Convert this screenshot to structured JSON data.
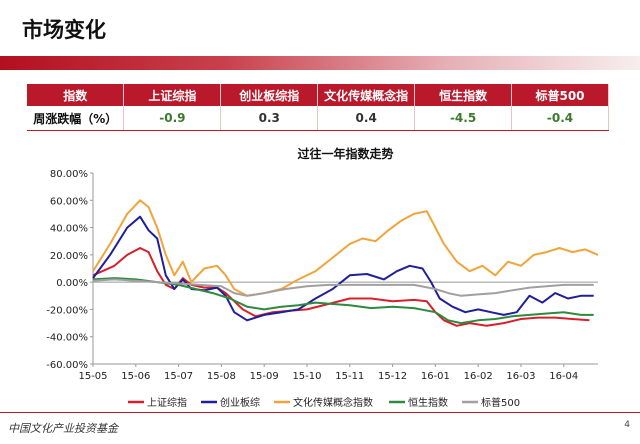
{
  "page_title": "市场变化",
  "summary_table": {
    "headers": [
      "指数",
      "上证综指",
      "创业板综指",
      "文化传媒概念指",
      "恒生指数",
      "标普500"
    ],
    "row_label": "周涨跌幅（%）",
    "values": [
      "-0.9",
      "0.3",
      "0.4",
      "-4.5",
      "-0.4"
    ]
  },
  "footer": {
    "logo_text": "中国文化产业投资基金",
    "page_number": "4"
  },
  "chart_data": {
    "type": "line",
    "title": "过往一年指数走势",
    "y_ticks": [
      "80.00%",
      "60.00%",
      "40.00%",
      "20.00%",
      "0.00%",
      "-20.00%",
      "-40.00%",
      "-60.00%"
    ],
    "ylim": [
      -60,
      80
    ],
    "x_ticks": [
      "15-05",
      "15-06",
      "15-07",
      "15-08",
      "15-09",
      "15-10",
      "15-11",
      "15-12",
      "16-01",
      "16-02",
      "16-03",
      "16-04"
    ],
    "grid": false,
    "legend_position": "bottom",
    "series": [
      {
        "name": "上证综指",
        "color": "#d7202b",
        "points": [
          [
            0,
            5
          ],
          [
            0.5,
            12
          ],
          [
            0.8,
            20
          ],
          [
            1.1,
            25
          ],
          [
            1.3,
            22
          ],
          [
            1.5,
            8
          ],
          [
            1.7,
            -2
          ],
          [
            1.9,
            -5
          ],
          [
            2.1,
            3
          ],
          [
            2.3,
            -2
          ],
          [
            2.6,
            -4
          ],
          [
            2.9,
            -4
          ],
          [
            3.1,
            -8
          ],
          [
            3.3,
            -14
          ],
          [
            3.5,
            -20
          ],
          [
            3.8,
            -25
          ],
          [
            4.2,
            -22
          ],
          [
            4.6,
            -21
          ],
          [
            5.0,
            -20
          ],
          [
            5.5,
            -16
          ],
          [
            6.0,
            -12
          ],
          [
            6.5,
            -12
          ],
          [
            7.0,
            -14
          ],
          [
            7.5,
            -13
          ],
          [
            7.8,
            -14
          ],
          [
            8.0,
            -22
          ],
          [
            8.2,
            -28
          ],
          [
            8.5,
            -32
          ],
          [
            8.8,
            -30
          ],
          [
            9.2,
            -32
          ],
          [
            9.6,
            -30
          ],
          [
            10.0,
            -27
          ],
          [
            10.4,
            -26
          ],
          [
            10.8,
            -26
          ],
          [
            11.2,
            -27
          ],
          [
            11.6,
            -28
          ]
        ]
      },
      {
        "name": "创业板综",
        "color": "#1f1f9a",
        "points": [
          [
            0,
            3
          ],
          [
            0.4,
            20
          ],
          [
            0.8,
            40
          ],
          [
            1.1,
            48
          ],
          [
            1.3,
            38
          ],
          [
            1.5,
            32
          ],
          [
            1.7,
            5
          ],
          [
            1.9,
            -5
          ],
          [
            2.1,
            2
          ],
          [
            2.3,
            -5
          ],
          [
            2.6,
            -6
          ],
          [
            2.9,
            -4
          ],
          [
            3.1,
            -10
          ],
          [
            3.3,
            -22
          ],
          [
            3.6,
            -28
          ],
          [
            4.0,
            -24
          ],
          [
            4.4,
            -22
          ],
          [
            4.8,
            -20
          ],
          [
            5.2,
            -12
          ],
          [
            5.6,
            -5
          ],
          [
            6.0,
            5
          ],
          [
            6.4,
            6
          ],
          [
            6.8,
            2
          ],
          [
            7.1,
            8
          ],
          [
            7.4,
            12
          ],
          [
            7.7,
            10
          ],
          [
            7.9,
            0
          ],
          [
            8.1,
            -12
          ],
          [
            8.4,
            -18
          ],
          [
            8.7,
            -22
          ],
          [
            9.0,
            -20
          ],
          [
            9.3,
            -22
          ],
          [
            9.6,
            -24
          ],
          [
            9.9,
            -22
          ],
          [
            10.2,
            -10
          ],
          [
            10.5,
            -15
          ],
          [
            10.8,
            -8
          ],
          [
            11.1,
            -12
          ],
          [
            11.4,
            -10
          ],
          [
            11.7,
            -10
          ]
        ]
      },
      {
        "name": "文化传媒概念指数",
        "color": "#f0a43a",
        "points": [
          [
            0,
            8
          ],
          [
            0.4,
            28
          ],
          [
            0.8,
            50
          ],
          [
            1.1,
            60
          ],
          [
            1.3,
            55
          ],
          [
            1.5,
            40
          ],
          [
            1.7,
            20
          ],
          [
            1.9,
            5
          ],
          [
            2.1,
            15
          ],
          [
            2.3,
            0
          ],
          [
            2.6,
            10
          ],
          [
            2.9,
            12
          ],
          [
            3.1,
            5
          ],
          [
            3.3,
            -5
          ],
          [
            3.6,
            -10
          ],
          [
            4.0,
            -8
          ],
          [
            4.4,
            -5
          ],
          [
            4.8,
            2
          ],
          [
            5.2,
            8
          ],
          [
            5.6,
            18
          ],
          [
            6.0,
            28
          ],
          [
            6.3,
            32
          ],
          [
            6.6,
            30
          ],
          [
            6.9,
            38
          ],
          [
            7.2,
            45
          ],
          [
            7.5,
            50
          ],
          [
            7.8,
            52
          ],
          [
            8.0,
            40
          ],
          [
            8.2,
            28
          ],
          [
            8.5,
            15
          ],
          [
            8.8,
            8
          ],
          [
            9.1,
            12
          ],
          [
            9.4,
            5
          ],
          [
            9.7,
            15
          ],
          [
            10.0,
            12
          ],
          [
            10.3,
            20
          ],
          [
            10.6,
            22
          ],
          [
            10.9,
            25
          ],
          [
            11.2,
            22
          ],
          [
            11.5,
            24
          ],
          [
            11.8,
            20
          ]
        ]
      },
      {
        "name": "恒生指数",
        "color": "#2d8a3e",
        "points": [
          [
            0,
            2
          ],
          [
            0.5,
            3
          ],
          [
            1.0,
            2
          ],
          [
            1.5,
            0
          ],
          [
            2.0,
            -2
          ],
          [
            2.4,
            -5
          ],
          [
            2.8,
            -8
          ],
          [
            3.2,
            -12
          ],
          [
            3.6,
            -18
          ],
          [
            4.0,
            -20
          ],
          [
            4.4,
            -18
          ],
          [
            4.8,
            -17
          ],
          [
            5.2,
            -15
          ],
          [
            5.6,
            -16
          ],
          [
            6.0,
            -17
          ],
          [
            6.5,
            -19
          ],
          [
            7.0,
            -18
          ],
          [
            7.5,
            -19
          ],
          [
            8.0,
            -22
          ],
          [
            8.3,
            -28
          ],
          [
            8.6,
            -30
          ],
          [
            9.0,
            -28
          ],
          [
            9.4,
            -27
          ],
          [
            9.8,
            -25
          ],
          [
            10.2,
            -24
          ],
          [
            10.6,
            -23
          ],
          [
            11.0,
            -22
          ],
          [
            11.4,
            -24
          ],
          [
            11.7,
            -24
          ]
        ]
      },
      {
        "name": "标普500",
        "color": "#a0a0a0",
        "points": [
          [
            0,
            1
          ],
          [
            0.5,
            2
          ],
          [
            1.0,
            1
          ],
          [
            1.5,
            0
          ],
          [
            2.0,
            -1
          ],
          [
            2.5,
            -2
          ],
          [
            3.0,
            -3
          ],
          [
            3.3,
            -8
          ],
          [
            3.6,
            -10
          ],
          [
            4.0,
            -8
          ],
          [
            4.5,
            -5
          ],
          [
            5.0,
            -3
          ],
          [
            5.5,
            -2
          ],
          [
            6.0,
            -2
          ],
          [
            6.5,
            -2
          ],
          [
            7.0,
            -2
          ],
          [
            7.5,
            -2
          ],
          [
            8.0,
            -5
          ],
          [
            8.3,
            -8
          ],
          [
            8.6,
            -10
          ],
          [
            9.0,
            -9
          ],
          [
            9.4,
            -8
          ],
          [
            9.8,
            -6
          ],
          [
            10.2,
            -4
          ],
          [
            10.6,
            -3
          ],
          [
            11.0,
            -2
          ],
          [
            11.4,
            -2
          ],
          [
            11.7,
            -2
          ]
        ]
      }
    ]
  }
}
